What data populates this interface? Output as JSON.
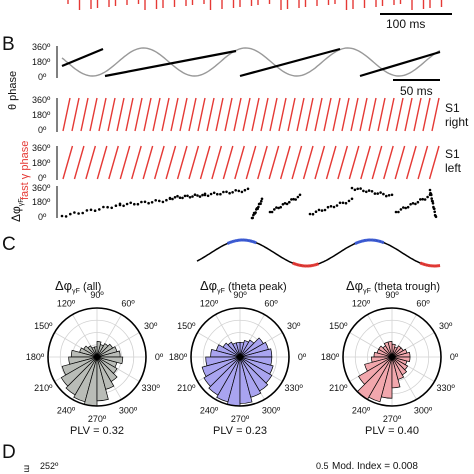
{
  "panels": {
    "B": "B",
    "C": "C",
    "D": "D"
  },
  "top_scalebar": "100 ms",
  "theta_scalebar": "50 ms",
  "colors": {
    "spikes": "#e53935",
    "gamma_phase": "#e53935",
    "theta_wave": "#999999",
    "theta_phase": "#000000",
    "peak": "#3b5bd6",
    "trough": "#e53935",
    "rose_all": "#b9bcb7",
    "rose_peak": "#a9a4f0",
    "rose_trough": "#f2a7ad"
  },
  "traces": {
    "theta_ylabel": "θ phase",
    "gamma_ylabel": "fast γ phase",
    "dphi_ylabel": "Δφ",
    "dphi_sub": "γF",
    "ticks": [
      "360º",
      "180º",
      "0º"
    ],
    "s1_right": [
      "S1",
      "right"
    ],
    "s1_left": [
      "S1",
      "left"
    ]
  },
  "chart_data": [
    {
      "type": "line",
      "title": "θ phase",
      "ylim": [
        0,
        360
      ],
      "y_ticks": [
        "0º",
        "180º",
        "360º"
      ],
      "series": [
        {
          "name": "theta wave",
          "color": "#999999"
        },
        {
          "name": "theta phase",
          "color": "#000000"
        }
      ],
      "theta_cycles": 3.7
    },
    {
      "type": "line",
      "title": "fast γ phase",
      "ylim": [
        0,
        360
      ],
      "y_ticks": [
        "0º",
        "180º",
        "360º"
      ],
      "series": [
        {
          "name": "S1 right",
          "cycles": 42
        },
        {
          "name": "S1 left",
          "cycles": 33
        }
      ]
    },
    {
      "type": "scatter",
      "title": "Δφ γF",
      "ylim": [
        0,
        360
      ],
      "y_ticks": [
        "0º",
        "180º",
        "360º"
      ]
    },
    {
      "type": "pie",
      "subtype": "polar-histogram",
      "label_prefix": "Δφ",
      "label_sub": "γF",
      "label_suffix": "(all)",
      "angle_labels": [
        "90º",
        "60º",
        "30º",
        "0º",
        "330º",
        "300º",
        "270º",
        "240º",
        "210º",
        "180º",
        "150º",
        "120º"
      ],
      "bins_deg": [
        0,
        15,
        30,
        45,
        60,
        75,
        90,
        105,
        120,
        135,
        150,
        165,
        180,
        195,
        210,
        225,
        240,
        255,
        270,
        285,
        300,
        315,
        330,
        345
      ],
      "values": [
        0.45,
        0.4,
        0.35,
        0.3,
        0.25,
        0.3,
        0.2,
        0.2,
        0.25,
        0.3,
        0.35,
        0.5,
        0.55,
        0.7,
        0.8,
        0.85,
        0.9,
        0.95,
        0.85,
        0.65,
        0.55,
        0.45,
        0.4,
        0.5
      ],
      "color": "#b9bcb7",
      "plv": "PLV = 0.32"
    },
    {
      "type": "pie",
      "subtype": "polar-histogram",
      "label_prefix": "Δφ",
      "label_sub": "γF",
      "label_suffix": "(theta peak)",
      "angle_labels": [
        "90º",
        "60º",
        "30º",
        "0º",
        "330º",
        "300º",
        "270º",
        "240º",
        "210º",
        "180º",
        "150º",
        "120º"
      ],
      "bins_deg": [
        0,
        15,
        30,
        45,
        60,
        75,
        90,
        105,
        120,
        135,
        150,
        165,
        180,
        195,
        210,
        225,
        240,
        255,
        270,
        285,
        300,
        315,
        330,
        345
      ],
      "values": [
        0.65,
        0.6,
        0.55,
        0.4,
        0.35,
        0.3,
        0.3,
        0.3,
        0.35,
        0.4,
        0.5,
        0.6,
        0.7,
        0.8,
        0.85,
        0.9,
        0.95,
        1.0,
        0.95,
        0.85,
        0.8,
        0.75,
        0.7,
        0.65
      ],
      "color": "#a9a4f0",
      "plv": "PLV = 0.23"
    },
    {
      "type": "pie",
      "subtype": "polar-histogram",
      "label_prefix": "Δφ",
      "label_sub": "γF",
      "label_suffix": "(theta trough)",
      "angle_labels": [
        "90º",
        "60º",
        "30º",
        "0º",
        "330º",
        "300º",
        "270º",
        "240º",
        "210º",
        "180º",
        "150º",
        "120º"
      ],
      "bins_deg": [
        0,
        15,
        30,
        45,
        60,
        75,
        90,
        105,
        120,
        135,
        150,
        165,
        180,
        195,
        210,
        225,
        240,
        255,
        270,
        285,
        300,
        315,
        330,
        345
      ],
      "values": [
        0.35,
        0.3,
        0.25,
        0.25,
        0.2,
        0.25,
        0.3,
        0.3,
        0.25,
        0.3,
        0.3,
        0.35,
        0.4,
        0.55,
        0.75,
        0.95,
        0.9,
        0.8,
        0.6,
        0.45,
        0.4,
        0.35,
        0.3,
        0.35
      ],
      "color": "#f2a7ad",
      "plv": "PLV = 0.40"
    }
  ],
  "panel_d": {
    "ylabel_fragment": "ᴟ",
    "left_text": "252º",
    "right_value": "0.5",
    "mod_index": "Mod. Index = 0.008"
  }
}
